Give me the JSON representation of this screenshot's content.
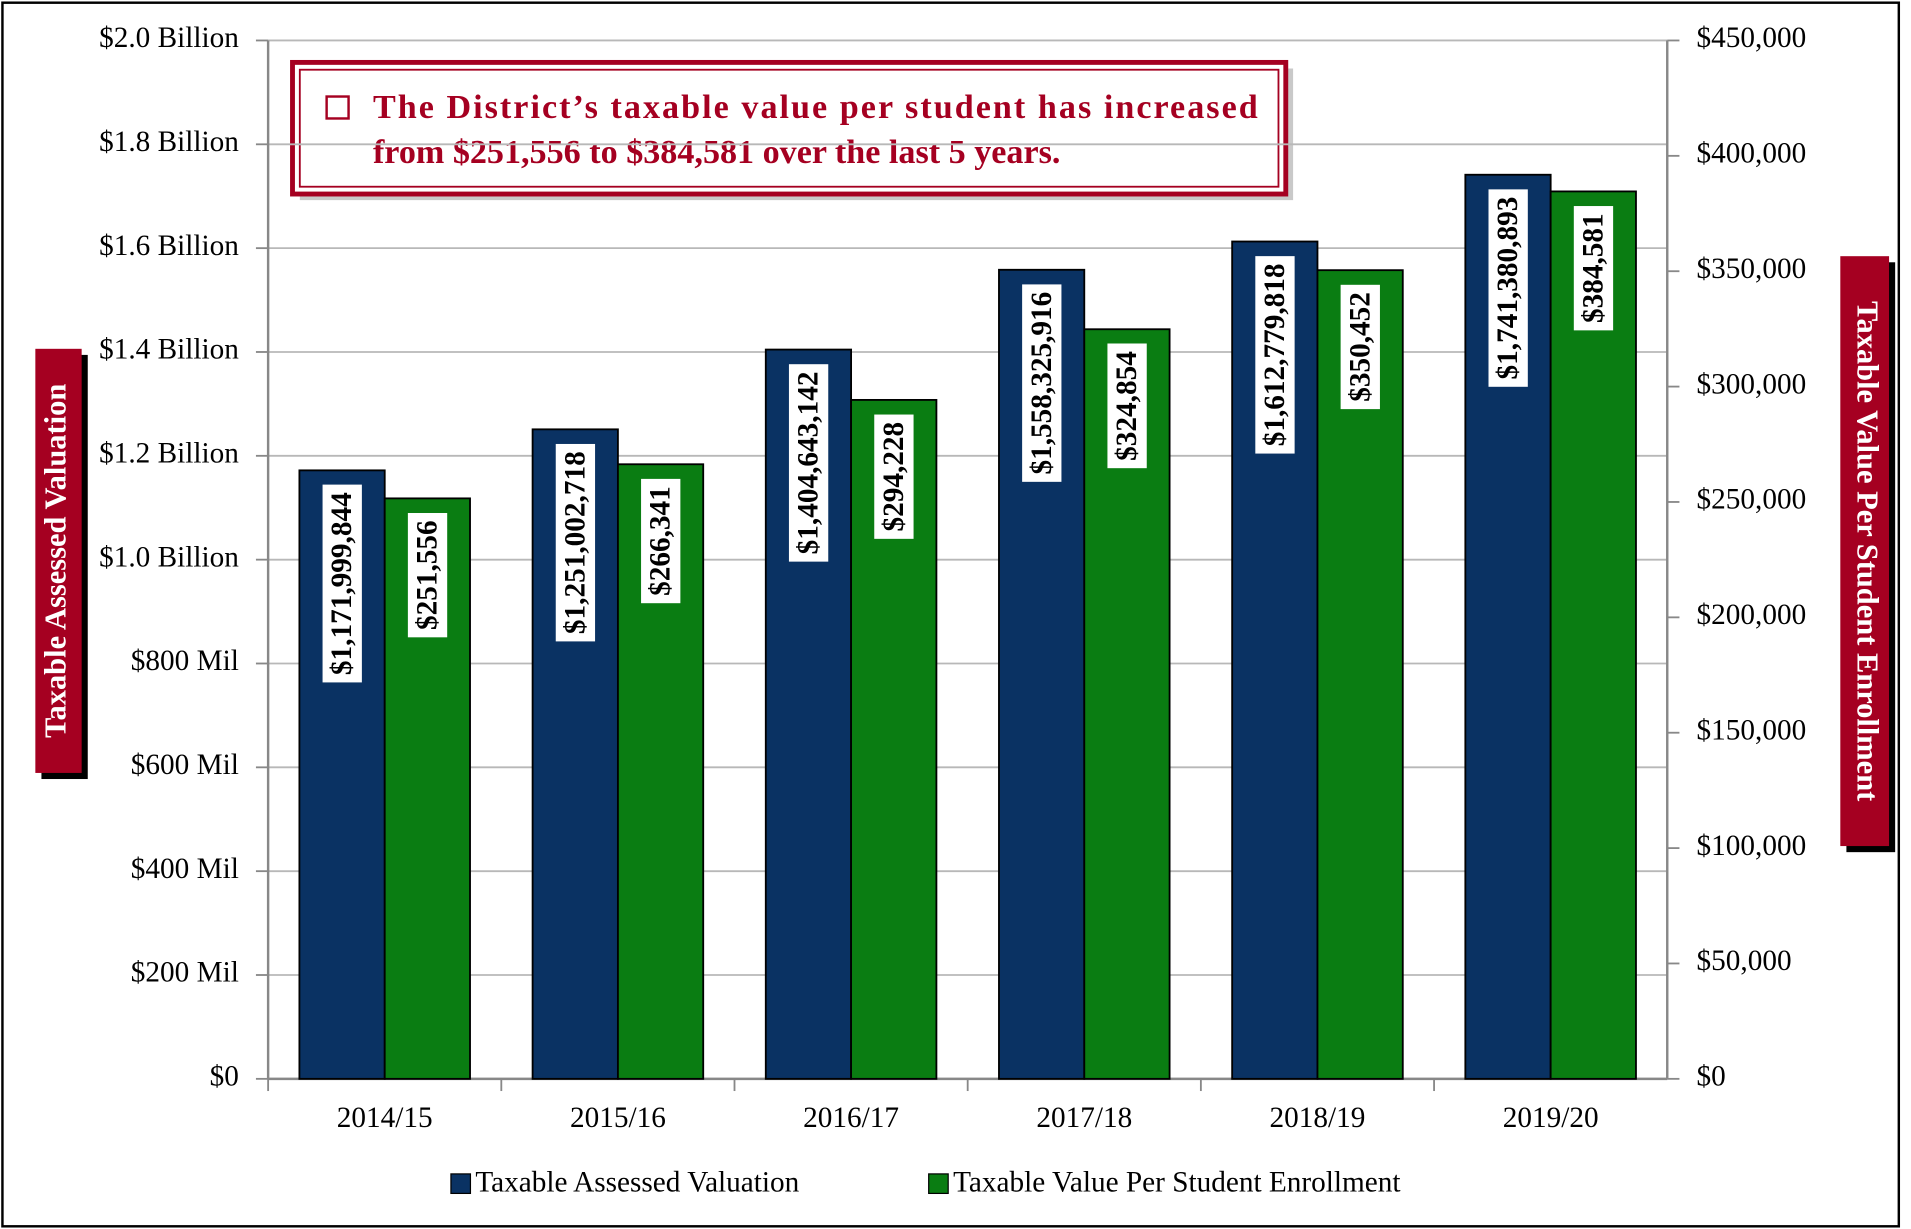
{
  "chart_data": {
    "type": "bar",
    "annotation": [
      "The District’s taxable value per student has increased",
      "from $251,556 to $384,581 over the last 5 years."
    ],
    "ylabel": "Taxable Assessed Valuation",
    "y2label": "Taxable Value Per Student Enrollment",
    "categories": [
      "2014/15",
      "2015/16",
      "2016/17",
      "2017/18",
      "2018/19",
      "2019/20"
    ],
    "series": [
      {
        "name": "Taxable Assessed Valuation",
        "color": "#0a3263",
        "values": [
          1171999844,
          1251002718,
          1404643142,
          1558325916,
          1612779818,
          1741380893
        ],
        "value_labels": [
          "$1,171,999,844",
          "$1,251,002,718",
          "$1,404,643,142",
          "$1,558,325,916",
          "$1,612,779,818",
          "$1,741,380,893"
        ]
      },
      {
        "name": "Taxable Value Per Student Enrollment",
        "color": "#0a7d12",
        "axis": "y2",
        "values": [
          251556,
          266341,
          294228,
          324854,
          350452,
          384581
        ],
        "value_labels": [
          "$251,556",
          "$266,341",
          "$294,228",
          "$324,854",
          "$350,452",
          "$384,581"
        ]
      }
    ],
    "ylim": [
      0,
      2000000000
    ],
    "yticks": [
      {
        "value": 0,
        "label": "$0"
      },
      {
        "value": 200000000,
        "label": "$200 Mil"
      },
      {
        "value": 400000000,
        "label": "$400 Mil"
      },
      {
        "value": 600000000,
        "label": "$600 Mil"
      },
      {
        "value": 800000000,
        "label": "$800 Mil"
      },
      {
        "value": 1000000000,
        "label": "$1.0 Billion"
      },
      {
        "value": 1200000000,
        "label": "$1.2 Billion"
      },
      {
        "value": 1400000000,
        "label": "$1.4 Billion"
      },
      {
        "value": 1600000000,
        "label": "$1.6 Billion"
      },
      {
        "value": 1800000000,
        "label": "$1.8 Billion"
      },
      {
        "value": 2000000000,
        "label": "$2.0 Billion"
      }
    ],
    "y2lim": [
      0,
      450000
    ],
    "y2ticks": [
      {
        "value": 0,
        "label": "$0"
      },
      {
        "value": 50000,
        "label": "$50,000"
      },
      {
        "value": 100000,
        "label": "$100,000"
      },
      {
        "value": 150000,
        "label": "$150,000"
      },
      {
        "value": 200000,
        "label": "$200,000"
      },
      {
        "value": 250000,
        "label": "$250,000"
      },
      {
        "value": 300000,
        "label": "$300,000"
      },
      {
        "value": 350000,
        "label": "$350,000"
      },
      {
        "value": 400000,
        "label": "$400,000"
      },
      {
        "value": 450000,
        "label": "$450,000"
      }
    ],
    "grid": true,
    "legend": "bottom"
  }
}
